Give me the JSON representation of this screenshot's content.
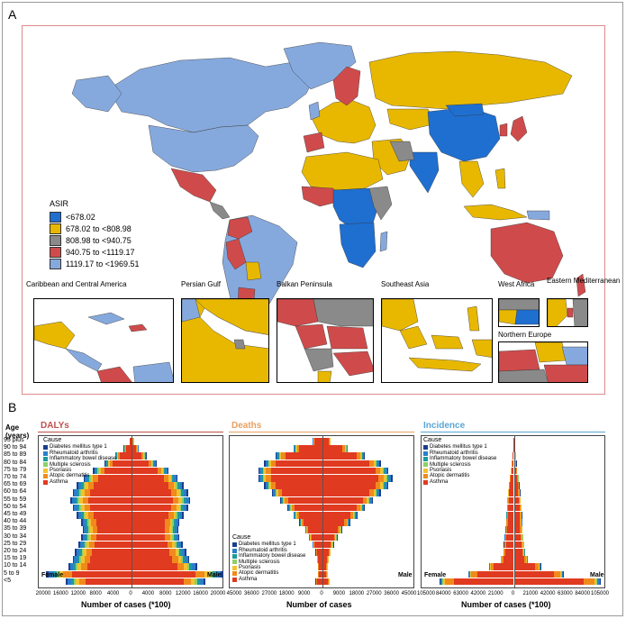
{
  "panel_a": {
    "letter": "A",
    "legend": {
      "title": "ASIR",
      "items": [
        {
          "label": "<678.02",
          "color": "#1f6fd0"
        },
        {
          "label": "678.02 to <808.98",
          "color": "#e8b800"
        },
        {
          "label": "808.98 to <940.75",
          "color": "#8a8a8a"
        },
        {
          "label": "940.75 to <1119.17",
          "color": "#cf4b4b"
        },
        {
          "label": "1119.17 to <1969.51",
          "color": "#86a9dd"
        }
      ]
    },
    "insets": [
      {
        "title": "Caribbean and Central America"
      },
      {
        "title": "Persian Gulf"
      },
      {
        "title": "Balkan Peninsula"
      },
      {
        "title": "Southeast Asia"
      },
      {
        "title": "West Africa"
      },
      {
        "title": "Eastern Mediterranean"
      },
      {
        "title": "Northern Europe"
      }
    ]
  },
  "panel_b": {
    "letter": "B",
    "age_header": "Age (years)",
    "age_groups": [
      "95 plus",
      "90 to 94",
      "85 to 89",
      "80 to 84",
      "75 to 79",
      "70 to 74",
      "65 to 69",
      "60 to 64",
      "55 to 59",
      "50 to 54",
      "45 to 49",
      "40 to 44",
      "35 to 39",
      "30 to 34",
      "25 to 29",
      "20 to 24",
      "15 to 19",
      "10 to 14",
      "5 to 9",
      "<5"
    ],
    "female_label": "Female",
    "male_label": "Male",
    "legend_title": "Cause",
    "causes": [
      {
        "name": "Diabetes mellitus type 1",
        "color": "#1b3d8f"
      },
      {
        "name": "Rheumatoid arthritis",
        "color": "#2a7fc9"
      },
      {
        "name": "Inflammatory bowel disease",
        "color": "#1f9a9a"
      },
      {
        "name": "Multiple sclerosis",
        "color": "#8ccf6a"
      },
      {
        "name": "Psoriasis",
        "color": "#f2c230"
      },
      {
        "name": "Atopic dermatitis",
        "color": "#f08a1c"
      },
      {
        "name": "Asthma",
        "color": "#e03a20"
      }
    ],
    "colors": {
      "dalys": "#c0504d",
      "deaths": "#e8a060",
      "incidence": "#5aa6d6"
    }
  },
  "chart_data": [
    {
      "type": "bar",
      "title": "DALYs",
      "xlabel": "Number of cases (*100)",
      "ticks": [
        "20000",
        "16000",
        "12000",
        "8000",
        "4000",
        "0",
        "4000",
        "8000",
        "12000",
        "16000",
        "20000"
      ],
      "xlim": [
        -20000,
        20000
      ],
      "categories": [
        "95 plus",
        "90 to 94",
        "85 to 89",
        "80 to 84",
        "75 to 79",
        "70 to 74",
        "65 to 69",
        "60 to 64",
        "55 to 59",
        "50 to 54",
        "45 to 49",
        "40 to 44",
        "35 to 39",
        "30 to 34",
        "25 to 29",
        "20 to 24",
        "15 to 19",
        "10 to 14",
        "5 to 9",
        "<5"
      ],
      "female_total": [
        500,
        1800,
        3800,
        6200,
        8800,
        11000,
        12500,
        13500,
        14000,
        13500,
        12500,
        11500,
        11200,
        11500,
        12200,
        13000,
        13500,
        14500,
        19500,
        15000
      ],
      "male_total": [
        400,
        1500,
        3300,
        5700,
        8400,
        10600,
        12000,
        13000,
        13500,
        13000,
        12000,
        11000,
        10800,
        11000,
        11700,
        12500,
        13300,
        15000,
        21000,
        17000
      ]
    },
    {
      "type": "bar",
      "title": "Deaths",
      "xlabel": "Number of cases",
      "ticks": [
        "45000",
        "36000",
        "27000",
        "18000",
        "9000",
        "0",
        "9000",
        "18000",
        "27000",
        "36000",
        "45000"
      ],
      "xlim": [
        -45000,
        45000
      ],
      "categories": [
        "95 plus",
        "90 to 94",
        "85 to 89",
        "80 to 84",
        "75 to 79",
        "70 to 74",
        "65 to 69",
        "60 to 64",
        "55 to 59",
        "50 to 54",
        "45 to 49",
        "40 to 44",
        "35 to 39",
        "30 to 34",
        "25 to 29",
        "20 to 24",
        "15 to 19",
        "10 to 14",
        "5 to 9",
        "<5"
      ],
      "female_total": [
        5000,
        15000,
        24000,
        30000,
        33000,
        33000,
        30000,
        26000,
        22000,
        18000,
        15000,
        12000,
        9000,
        7000,
        5000,
        3500,
        2800,
        2500,
        2500,
        3500
      ],
      "male_total": [
        4000,
        13000,
        22000,
        30000,
        34000,
        36000,
        34000,
        30000,
        26000,
        22000,
        18000,
        14000,
        10000,
        7500,
        5500,
        4000,
        3000,
        2500,
        2500,
        3500
      ]
    },
    {
      "type": "bar",
      "title": "Incidence",
      "xlabel": "Number of cases (*100)",
      "ticks": [
        "105000",
        "84000",
        "63000",
        "42000",
        "21000",
        "0",
        "21000",
        "42000",
        "63000",
        "84000",
        "105000"
      ],
      "xlim": [
        -105000,
        105000
      ],
      "categories": [
        "95 plus",
        "90 to 94",
        "85 to 89",
        "80 to 84",
        "75 to 79",
        "70 to 74",
        "65 to 69",
        "60 to 64",
        "55 to 59",
        "50 to 54",
        "45 to 49",
        "40 to 44",
        "35 to 39",
        "30 to 34",
        "25 to 29",
        "20 to 24",
        "15 to 19",
        "10 to 14",
        "5 to 9",
        "<5"
      ],
      "female_total": [
        300,
        800,
        1500,
        2500,
        3500,
        5000,
        6000,
        7000,
        8000,
        8500,
        9000,
        9500,
        10000,
        11000,
        12000,
        13000,
        16000,
        30000,
        55000,
        90000
      ],
      "male_total": [
        300,
        700,
        1300,
        2200,
        3200,
        4600,
        5600,
        6600,
        7600,
        8200,
        8800,
        9000,
        9500,
        10500,
        11500,
        12500,
        16000,
        32000,
        60000,
        105000
      ]
    }
  ]
}
